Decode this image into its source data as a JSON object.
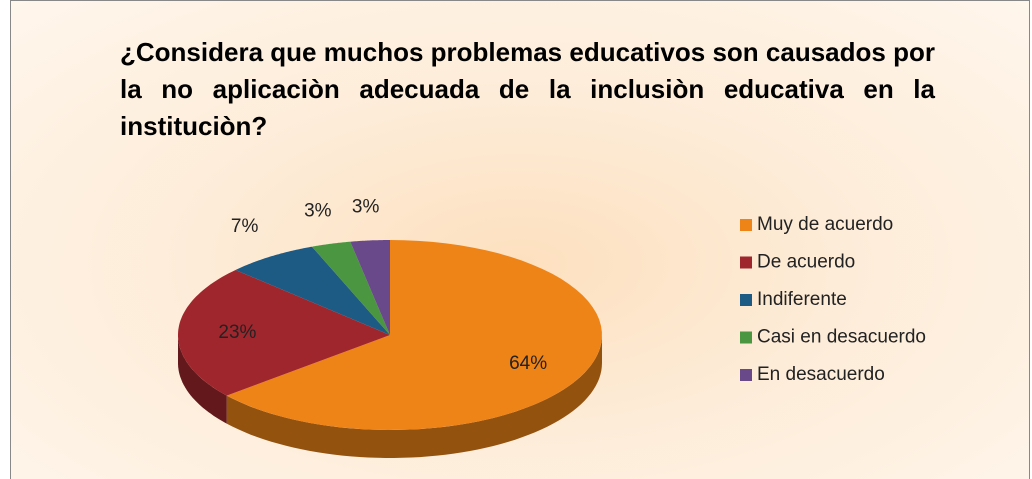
{
  "chart_data": {
    "type": "pie3d",
    "title": "¿Considera que muchos problemas educativos son causados por la no aplicaciòn adecuada de la inclusiòn educativa en la instituciòn?",
    "categories": [
      "Muy de acuerdo",
      "De acuerdo",
      "Indiferente",
      "Casi en desacuerdo",
      "En desacuerdo"
    ],
    "values": [
      64,
      23,
      7,
      3,
      3
    ],
    "value_labels": [
      "64%",
      "23%",
      "7%",
      "3%",
      "3%"
    ],
    "colors": [
      "#ee8418",
      "#a0262d",
      "#1d5b84",
      "#4a9641",
      "#69498a"
    ],
    "legend": "right"
  }
}
